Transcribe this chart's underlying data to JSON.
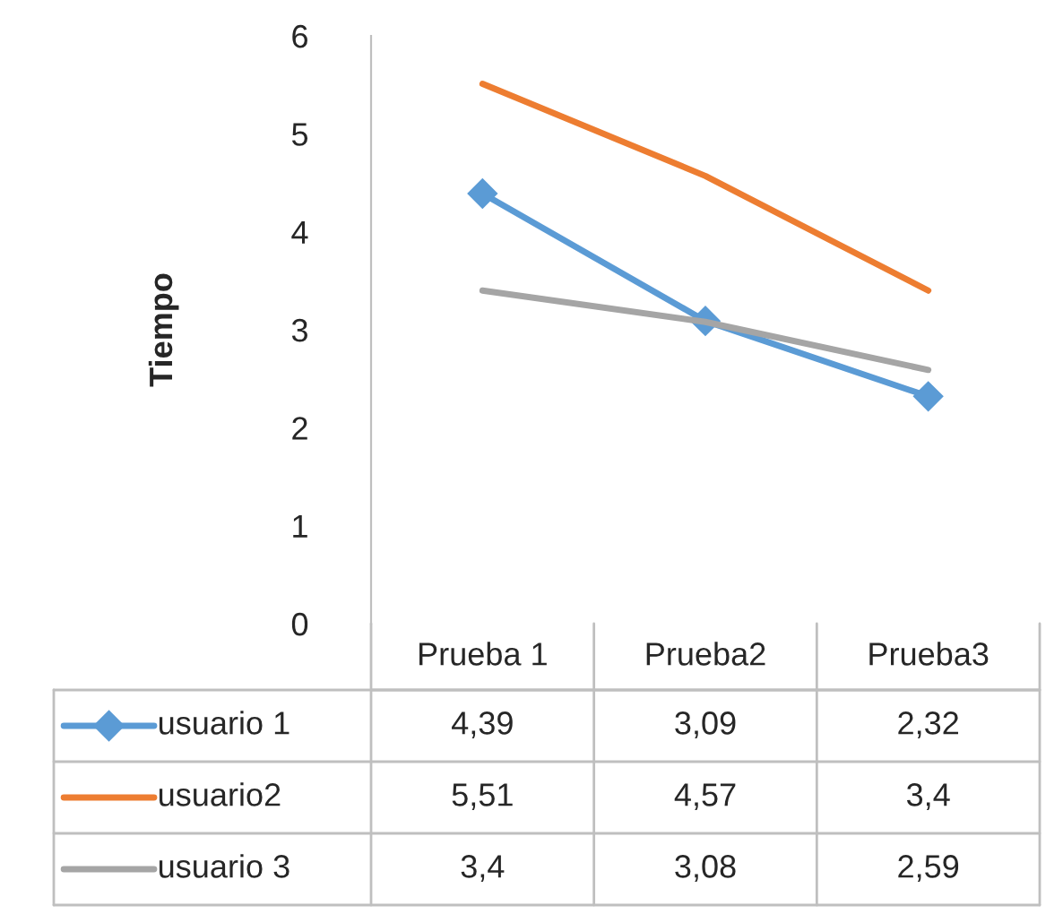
{
  "chart_data": {
    "type": "line",
    "ylabel": "Tiempo",
    "categories": [
      "Prueba 1",
      "Prueba2",
      "Prueba3"
    ],
    "series": [
      {
        "name": "usuario 1",
        "color": "#5b9bd5",
        "values": [
          4.39,
          3.09,
          2.32
        ],
        "marker": "diamond",
        "value_labels": [
          "4,39",
          "3,09",
          "2,32"
        ]
      },
      {
        "name": "usuario2",
        "color": "#ed7d31",
        "values": [
          5.51,
          4.57,
          3.4
        ],
        "marker": "none",
        "value_labels": [
          "5,51",
          "4,57",
          "3,4"
        ]
      },
      {
        "name": "usuario 3",
        "color": "#a5a5a5",
        "values": [
          3.4,
          3.08,
          2.59
        ],
        "marker": "none",
        "value_labels": [
          "3,4",
          "3,08",
          "2,59"
        ]
      }
    ],
    "ylim": [
      0,
      6
    ],
    "yticks": [
      0,
      1,
      2,
      3,
      4,
      5,
      6
    ],
    "grid": false,
    "legend": "bottom",
    "line_style": "solid"
  }
}
